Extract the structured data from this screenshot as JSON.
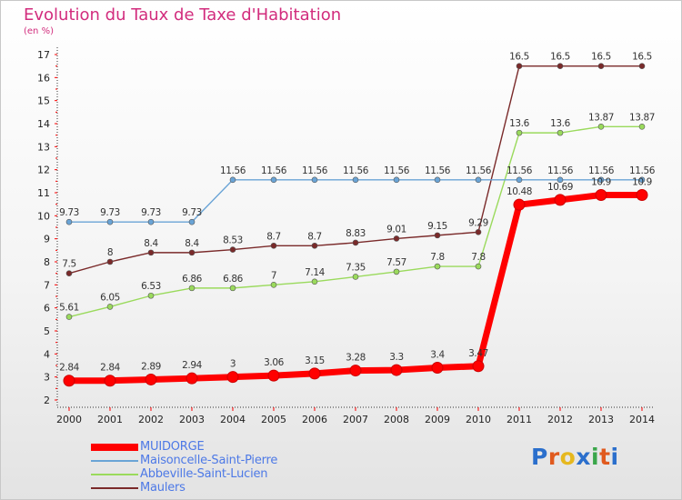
{
  "title": "Evolution du Taux de Taxe d'Habitation",
  "unit_label": "(en %)",
  "logo_text": "Proxiti",
  "chart_data": {
    "type": "line",
    "title": "Evolution du Taux de Taxe d'Habitation",
    "ylabel": "(en %)",
    "xlabel": "",
    "ylim": [
      2,
      17
    ],
    "y_ticks": [
      2,
      3,
      4,
      5,
      6,
      7,
      8,
      9,
      10,
      11,
      12,
      13,
      14,
      15,
      16,
      17
    ],
    "categories": [
      "2000",
      "2001",
      "2002",
      "2003",
      "2004",
      "2005",
      "2006",
      "2007",
      "2008",
      "2009",
      "2010",
      "2011",
      "2012",
      "2013",
      "2014"
    ],
    "grid": "off",
    "legend_position": "bottom-left",
    "series": [
      {
        "name": "MUIDORGE",
        "color": "#ff0000",
        "values": [
          2.84,
          2.84,
          2.89,
          2.94,
          3,
          3.06,
          3.15,
          3.28,
          3.3,
          3.4,
          3.47,
          10.48,
          10.69,
          10.9,
          10.9
        ],
        "labels": [
          "2.84",
          "2.84",
          "2.89",
          "2.94",
          "3",
          "3.06",
          "3.15",
          "3.28",
          "3.3",
          "3.4",
          "3.47",
          "10.48",
          "10.69",
          "10.9",
          "10.9"
        ]
      },
      {
        "name": "Maisoncelle-Saint-Pierre",
        "color": "#6aa4d6",
        "values": [
          9.73,
          9.73,
          9.73,
          9.73,
          11.56,
          11.56,
          11.56,
          11.56,
          11.56,
          11.56,
          11.56,
          11.56,
          11.56,
          11.56,
          11.56
        ],
        "labels": [
          "9.73",
          "9.73",
          "9.73",
          "9.73",
          "11.56",
          "11.56",
          "11.56",
          "11.56",
          "11.56",
          "11.56",
          "11.56",
          "11.56",
          "11.56",
          "11.56",
          "11.56"
        ]
      },
      {
        "name": "Abbeville-Saint-Lucien",
        "color": "#9ada5c",
        "values": [
          5.61,
          6.05,
          6.53,
          6.86,
          6.86,
          7,
          7.14,
          7.35,
          7.57,
          7.8,
          7.8,
          13.6,
          13.6,
          13.87,
          13.87
        ],
        "labels": [
          "5.61",
          "6.05",
          "6.53",
          "6.86",
          "6.86",
          "7",
          "7.14",
          "7.35",
          "7.57",
          "7.8",
          "7.8",
          "13.6",
          "13.6",
          "13.87",
          "13.87"
        ]
      },
      {
        "name": "Maulers",
        "color": "#7a2a2a",
        "values": [
          7.5,
          8,
          8.4,
          8.4,
          8.53,
          8.7,
          8.7,
          8.83,
          9.01,
          9.15,
          9.29,
          16.5,
          16.5,
          16.5,
          16.5
        ],
        "labels": [
          "7.5",
          "8",
          "8.4",
          "8.4",
          "8.53",
          "8.7",
          "8.7",
          "8.83",
          "9.01",
          "9.15",
          "9.29",
          "16.5",
          "16.5",
          "16.5",
          "16.5"
        ]
      }
    ]
  }
}
